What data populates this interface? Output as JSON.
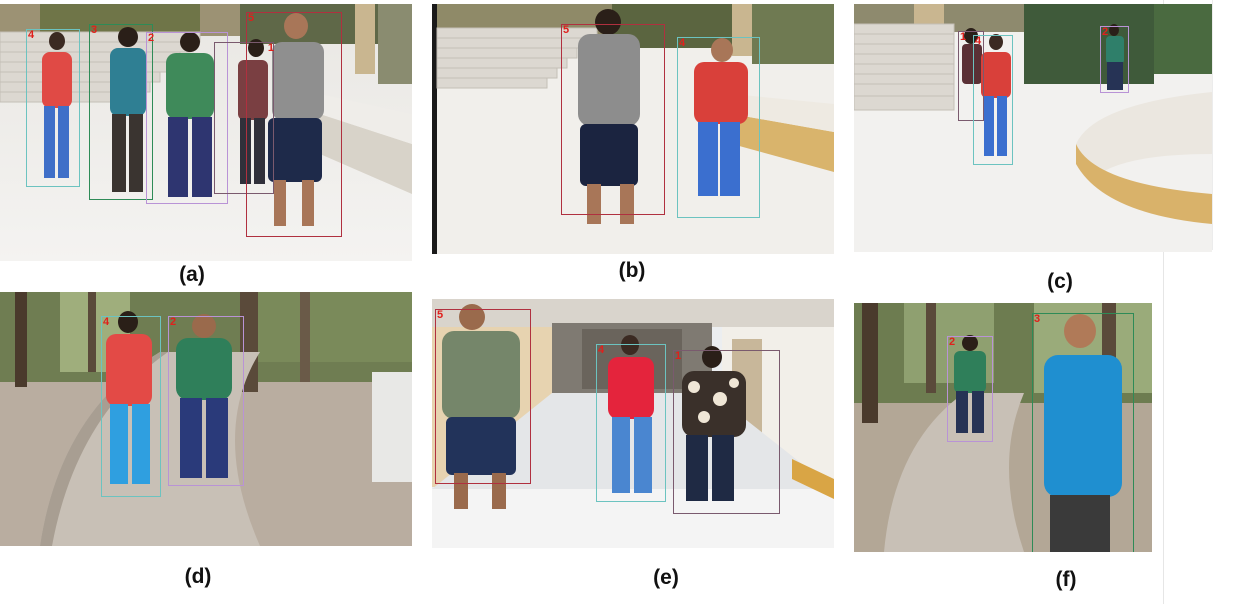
{
  "figure": {
    "panels": [
      {
        "caption": "(a)",
        "scene": "outdoor-steps",
        "people": [
          {
            "id": "4",
            "box_color": "#6cc3c0"
          },
          {
            "id": "3",
            "box_color": "#2e8b57"
          },
          {
            "id": "2",
            "box_color": "#b993d6"
          },
          {
            "id": "1",
            "box_color": "#7a5a6e"
          },
          {
            "id": "5",
            "box_color": "#b0303f"
          }
        ]
      },
      {
        "caption": "(b)",
        "scene": "outdoor-steps",
        "people": [
          {
            "id": "5",
            "box_color": "#b0303f"
          },
          {
            "id": "4",
            "box_color": "#6cc3c0"
          }
        ]
      },
      {
        "caption": "(c)",
        "scene": "outdoor-curved-wall",
        "people": [
          {
            "id": "1",
            "box_color": "#7a5a6e"
          },
          {
            "id": "4",
            "box_color": "#6cc3c0"
          },
          {
            "id": "2",
            "box_color": "#b993d6"
          }
        ]
      },
      {
        "caption": "(d)",
        "scene": "park-path",
        "people": [
          {
            "id": "4",
            "box_color": "#6cc3c0"
          },
          {
            "id": "2",
            "box_color": "#b993d6"
          }
        ]
      },
      {
        "caption": "(e)",
        "scene": "indoor-corridor",
        "people": [
          {
            "id": "5",
            "box_color": "#b0303f"
          },
          {
            "id": "4",
            "box_color": "#6cc3c0"
          },
          {
            "id": "1",
            "box_color": "#7a5a6e"
          }
        ]
      },
      {
        "caption": "(f)",
        "scene": "park-path",
        "people": [
          {
            "id": "2",
            "box_color": "#b993d6"
          },
          {
            "id": "3",
            "box_color": "#2e8b57"
          }
        ]
      }
    ]
  }
}
